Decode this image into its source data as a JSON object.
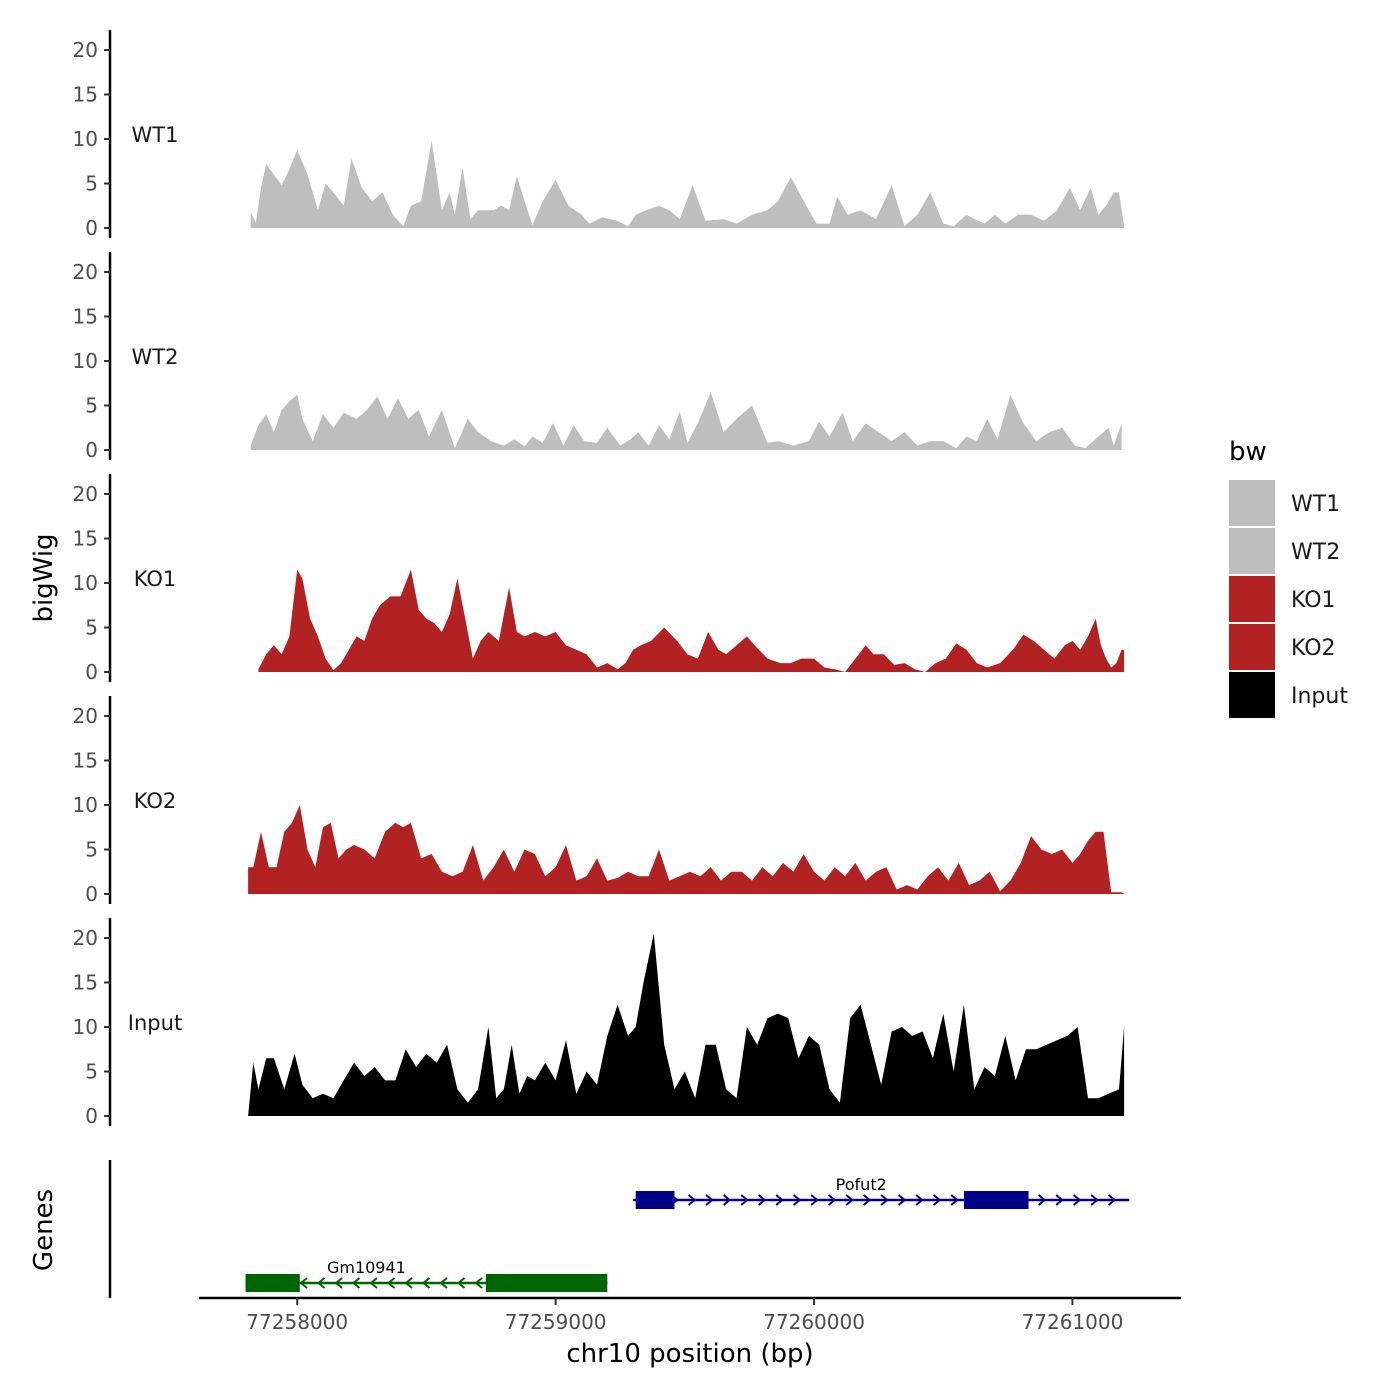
{
  "chart_data": {
    "type": "area",
    "ylabel": "bigWig",
    "xlabel": "chr10 position (bp)",
    "xlim": [
      77257620,
      77261420
    ],
    "ylim": [
      0,
      21
    ],
    "yticks": [
      0,
      5,
      10,
      15,
      20
    ],
    "xticks": [
      77258000,
      77259000,
      77260000,
      77261000
    ],
    "series": [
      {
        "name": "WT1",
        "color": "#BEBEBE",
        "x": [
          77257820,
          77257840,
          77257860,
          77257880,
          77257910,
          77257940,
          77257970,
          77258000,
          77258040,
          77258080,
          77258110,
          77258140,
          77258180,
          77258210,
          77258250,
          77258290,
          77258330,
          77258370,
          77258410,
          77258440,
          77258480,
          77258520,
          77258560,
          77258590,
          77258610,
          77258640,
          77258670,
          77258700,
          77258730,
          77258760,
          77258790,
          77258820,
          77258850,
          77258880,
          77258910,
          77258950,
          77259000,
          77259050,
          77259100,
          77259130,
          77259180,
          77259240,
          77259280,
          77259310,
          77259350,
          77259400,
          77259440,
          77259480,
          77259530,
          77259580,
          77259650,
          77259700,
          77259760,
          77259820,
          77259860,
          77259910,
          77259960,
          77260010,
          77260060,
          77260090,
          77260130,
          77260180,
          77260240,
          77260300,
          77260350,
          77260400,
          77260450,
          77260500,
          77260540,
          77260590,
          77260620,
          77260660,
          77260700,
          77260740,
          77260790,
          77260840,
          77260890,
          77260940,
          77260990,
          77261030,
          77261070,
          77261100,
          77261130,
          77261160,
          77261180,
          77261200
        ],
        "values": [
          1.8,
          0.6,
          4.5,
          7.2,
          6.0,
          4.8,
          6.6,
          8.8,
          6.0,
          2.0,
          5.0,
          4.0,
          2.5,
          7.8,
          4.5,
          3.0,
          4.0,
          1.5,
          0.2,
          2.5,
          3.0,
          9.8,
          2.0,
          4.0,
          1.5,
          6.8,
          1.0,
          2.0,
          2.0,
          2.0,
          2.5,
          2.0,
          5.8,
          3.0,
          0.3,
          3.0,
          5.4,
          2.5,
          1.5,
          0.5,
          1.2,
          0.8,
          0.2,
          1.5,
          2.0,
          2.5,
          2.0,
          1.0,
          4.8,
          0.8,
          1.0,
          0.5,
          1.5,
          2.0,
          3.0,
          5.7,
          3.0,
          0.5,
          0.5,
          3.5,
          1.5,
          2.0,
          1.0,
          4.8,
          0.2,
          1.5,
          4.0,
          0.5,
          0.2,
          1.5,
          1.0,
          0.5,
          1.5,
          0.5,
          1.5,
          1.5,
          0.8,
          2.0,
          4.5,
          2.0,
          4.5,
          1.5,
          2.5,
          4.0,
          4.0,
          0.2
        ]
      },
      {
        "name": "WT2",
        "color": "#BEBEBE",
        "x": [
          77257820,
          77257850,
          77257880,
          77257910,
          77257940,
          77257970,
          77258000,
          77258020,
          77258060,
          77258100,
          77258140,
          77258180,
          77258230,
          77258270,
          77258310,
          77258350,
          77258390,
          77258430,
          77258470,
          77258510,
          77258560,
          77258610,
          77258660,
          77258700,
          77258750,
          77258800,
          77258840,
          77258880,
          77258910,
          77258950,
          77258990,
          77259030,
          77259070,
          77259110,
          77259160,
          77259200,
          77259250,
          77259290,
          77259320,
          77259360,
          77259400,
          77259440,
          77259480,
          77259510,
          77259550,
          77259600,
          77259650,
          77259700,
          77259760,
          77259820,
          77259860,
          77259920,
          77259980,
          77260020,
          77260060,
          77260110,
          77260150,
          77260200,
          77260250,
          77260300,
          77260350,
          77260400,
          77260450,
          77260500,
          77260550,
          77260590,
          77260630,
          77260670,
          77260710,
          77260760,
          77260810,
          77260860,
          77260910,
          77260960,
          77261010,
          77261050,
          77261100,
          77261140,
          77261160,
          77261190
        ],
        "values": [
          0.5,
          2.8,
          4.0,
          2.0,
          4.5,
          5.5,
          6.2,
          3.5,
          1.0,
          4.0,
          2.5,
          4.2,
          3.5,
          4.5,
          6.0,
          3.5,
          5.8,
          3.5,
          4.5,
          1.5,
          4.5,
          0.2,
          3.5,
          2.0,
          1.0,
          0.5,
          1.2,
          0.4,
          1.5,
          0.8,
          3.0,
          0.5,
          2.8,
          1.0,
          0.8,
          2.5,
          0.5,
          1.2,
          2.0,
          0.5,
          2.8,
          1.2,
          4.3,
          0.8,
          3.0,
          6.5,
          2.0,
          3.5,
          5.0,
          0.8,
          1.0,
          0.5,
          1.0,
          3.2,
          1.5,
          4.2,
          1.0,
          3.0,
          2.0,
          1.0,
          2.0,
          0.5,
          1.0,
          1.0,
          0.2,
          1.5,
          1.0,
          3.5,
          1.2,
          6.2,
          3.0,
          1.0,
          2.0,
          2.5,
          0.5,
          0.2,
          1.5,
          2.5,
          0.5,
          3.0
        ]
      },
      {
        "name": "KO1",
        "color": "#B22222",
        "x": [
          77257850,
          77257880,
          77257910,
          77257940,
          77257970,
          77258000,
          77258020,
          77258050,
          77258080,
          77258110,
          77258140,
          77258170,
          77258200,
          77258230,
          77258260,
          77258290,
          77258320,
          77258360,
          77258400,
          77258440,
          77258470,
          77258500,
          77258530,
          77258560,
          77258590,
          77258620,
          77258650,
          77258680,
          77258710,
          77258740,
          77258780,
          77258820,
          77258850,
          77258880,
          77258920,
          77258960,
          77259000,
          77259040,
          77259080,
          77259120,
          77259160,
          77259200,
          77259240,
          77259270,
          77259300,
          77259330,
          77259370,
          77259420,
          77259470,
          77259510,
          77259550,
          77259590,
          77259630,
          77259660,
          77259700,
          77259740,
          77259770,
          77259820,
          77259870,
          77259910,
          77259950,
          77260000,
          77260040,
          77260080,
          77260120,
          77260160,
          77260200,
          77260230,
          77260270,
          77260310,
          77260350,
          77260390,
          77260430,
          77260470,
          77260510,
          77260550,
          77260590,
          77260630,
          77260670,
          77260720,
          77260770,
          77260810,
          77260850,
          77260890,
          77260930,
          77260970,
          77261000,
          77261030,
          77261060,
          77261090,
          77261110,
          77261130,
          77261150,
          77261170,
          77261190,
          77261200
        ],
        "values": [
          0.3,
          2.0,
          3.0,
          2.0,
          4.0,
          11.5,
          10.5,
          6.0,
          4.0,
          1.5,
          0.2,
          1.0,
          2.5,
          4.0,
          3.5,
          6.0,
          7.5,
          8.5,
          8.5,
          11.5,
          7.0,
          6.0,
          5.5,
          4.5,
          6.5,
          10.5,
          6.0,
          1.5,
          3.5,
          4.5,
          3.5,
          9.5,
          4.5,
          4.0,
          4.5,
          4.0,
          4.5,
          3.0,
          2.5,
          2.0,
          0.5,
          1.0,
          0.3,
          1.0,
          2.5,
          3.0,
          3.5,
          5.0,
          3.5,
          2.0,
          1.5,
          4.5,
          2.5,
          2.0,
          3.0,
          4.0,
          3.0,
          1.5,
          1.0,
          1.0,
          1.5,
          1.5,
          0.5,
          0.3,
          0.0,
          1.5,
          3.0,
          2.0,
          2.0,
          0.8,
          1.0,
          0.3,
          0.0,
          1.0,
          1.5,
          3.2,
          2.5,
          1.0,
          0.5,
          1.0,
          2.5,
          4.2,
          3.5,
          2.5,
          1.5,
          3.0,
          3.5,
          2.5,
          4.0,
          6.0,
          3.0,
          1.5,
          0.5,
          1.0,
          2.5,
          2.5
        ]
      },
      {
        "name": "KO2",
        "color": "#B22222",
        "x": [
          77257810,
          77257830,
          77257860,
          77257890,
          77257920,
          77257950,
          77257980,
          77258010,
          77258040,
          77258070,
          77258100,
          77258130,
          77258160,
          77258190,
          77258220,
          77258260,
          77258300,
          77258340,
          77258380,
          77258410,
          77258440,
          77258480,
          77258520,
          77258560,
          77258600,
          77258640,
          77258680,
          77258720,
          77258760,
          77258800,
          77258840,
          77258880,
          77258920,
          77258960,
          77259000,
          77259040,
          77259080,
          77259120,
          77259160,
          77259200,
          77259240,
          77259280,
          77259320,
          77259360,
          77259400,
          77259440,
          77259480,
          77259520,
          77259560,
          77259600,
          77259640,
          77259680,
          77259720,
          77259760,
          77259800,
          77259840,
          77259880,
          77259920,
          77259960,
          77260000,
          77260040,
          77260080,
          77260120,
          77260160,
          77260200,
          77260240,
          77260280,
          77260320,
          77260360,
          77260400,
          77260440,
          77260480,
          77260520,
          77260560,
          77260600,
          77260640,
          77260680,
          77260720,
          77260760,
          77260800,
          77260840,
          77260880,
          77260920,
          77260960,
          77261000,
          77261030,
          77261060,
          77261090,
          77261120,
          77261150,
          77261170,
          77261190,
          77261200
        ],
        "values": [
          3.0,
          3.0,
          7.0,
          3.0,
          3.0,
          7.0,
          8.0,
          10.0,
          5.0,
          3.0,
          7.5,
          8.0,
          4.0,
          5.0,
          5.5,
          5.0,
          4.0,
          7.0,
          8.0,
          7.5,
          8.0,
          4.0,
          4.5,
          2.5,
          2.0,
          2.5,
          5.5,
          1.5,
          3.0,
          5.0,
          2.5,
          5.0,
          4.5,
          2.0,
          3.0,
          5.5,
          1.5,
          2.0,
          4.0,
          1.5,
          1.8,
          2.5,
          2.0,
          2.0,
          5.0,
          1.5,
          2.0,
          2.5,
          2.0,
          3.0,
          1.5,
          2.5,
          2.5,
          1.5,
          3.0,
          2.0,
          3.5,
          2.5,
          4.5,
          2.5,
          1.5,
          3.0,
          2.0,
          3.5,
          1.5,
          2.5,
          3.0,
          0.5,
          1.0,
          0.5,
          2.0,
          3.0,
          1.5,
          3.5,
          1.0,
          1.5,
          2.5,
          0.3,
          1.5,
          3.5,
          6.5,
          5.0,
          4.5,
          5.0,
          3.5,
          4.5,
          6.0,
          7.0,
          7.0,
          0.2,
          0.2,
          0.2,
          0.0
        ]
      },
      {
        "name": "Input",
        "color": "#000000",
        "x": [
          77257810,
          77257830,
          77257850,
          77257880,
          77257910,
          77257950,
          77257990,
          77258020,
          77258060,
          77258100,
          77258140,
          77258180,
          77258220,
          77258260,
          77258300,
          77258340,
          77258380,
          77258420,
          77258460,
          77258500,
          77258540,
          77258580,
          77258620,
          77258660,
          77258700,
          77258740,
          77258770,
          77258800,
          77258830,
          77258860,
          77258890,
          77258920,
          77258960,
          77259000,
          77259040,
          77259080,
          77259120,
          77259160,
          77259200,
          77259240,
          77259280,
          77259310,
          77259340,
          77259380,
          77259420,
          77259460,
          77259500,
          77259540,
          77259580,
          77259620,
          77259660,
          77259700,
          77259740,
          77259780,
          77259820,
          77259860,
          77259900,
          77259940,
          77259980,
          77260020,
          77260060,
          77260100,
          77260140,
          77260180,
          77260220,
          77260260,
          77260300,
          77260340,
          77260380,
          77260420,
          77260460,
          77260500,
          77260540,
          77260580,
          77260620,
          77260660,
          77260700,
          77260740,
          77260780,
          77260820,
          77260860,
          77260900,
          77260940,
          77260980,
          77261020,
          77261060,
          77261100,
          77261140,
          77261180,
          77261200
        ],
        "values": [
          0.0,
          6.0,
          3.0,
          6.5,
          6.5,
          3.0,
          7.0,
          3.5,
          2.0,
          2.5,
          2.0,
          4.0,
          6.0,
          4.5,
          5.5,
          4.0,
          4.0,
          7.5,
          5.5,
          7.0,
          6.0,
          8.0,
          3.0,
          1.5,
          3.0,
          10.0,
          2.0,
          3.0,
          8.0,
          2.5,
          4.5,
          4.0,
          6.0,
          4.0,
          8.5,
          2.5,
          5.0,
          3.5,
          9.0,
          12.5,
          9.0,
          10.0,
          15.0,
          20.5,
          8.0,
          3.0,
          5.0,
          2.0,
          8.0,
          8.0,
          3.0,
          2.0,
          10.0,
          8.0,
          11.0,
          11.5,
          11.0,
          6.5,
          9.0,
          8.0,
          3.0,
          1.5,
          11.0,
          12.5,
          8.0,
          3.5,
          9.5,
          10.0,
          9.0,
          9.5,
          6.5,
          11.5,
          5.0,
          12.5,
          3.0,
          5.5,
          4.5,
          9.0,
          4.0,
          7.5,
          7.5,
          8.0,
          8.5,
          9.0,
          10.0,
          2.0,
          2.0,
          2.5,
          3.0,
          10.0
        ]
      }
    ],
    "genes_track": {
      "label": "Genes",
      "genes": [
        {
          "name": "Gm10941",
          "strand": "-",
          "color": "#006400",
          "start": 77257800,
          "end": 77259200,
          "exons": [
            [
              77257800,
              77258010
            ],
            [
              77258730,
              77259200
            ]
          ]
        },
        {
          "name": "Pofut2",
          "strand": "+",
          "color": "#00008B",
          "start": 77259300,
          "end": 77261220,
          "exons": [
            [
              77259310,
              77259460
            ],
            [
              77260580,
              77260830
            ]
          ]
        }
      ]
    },
    "legend": {
      "title": "bw",
      "position": "right",
      "entries": [
        {
          "label": "WT1",
          "color": "#BEBEBE"
        },
        {
          "label": "WT2",
          "color": "#BEBEBE"
        },
        {
          "label": "KO1",
          "color": "#B22222"
        },
        {
          "label": "KO2",
          "color": "#B22222"
        },
        {
          "label": "Input",
          "color": "#000000"
        }
      ]
    }
  }
}
